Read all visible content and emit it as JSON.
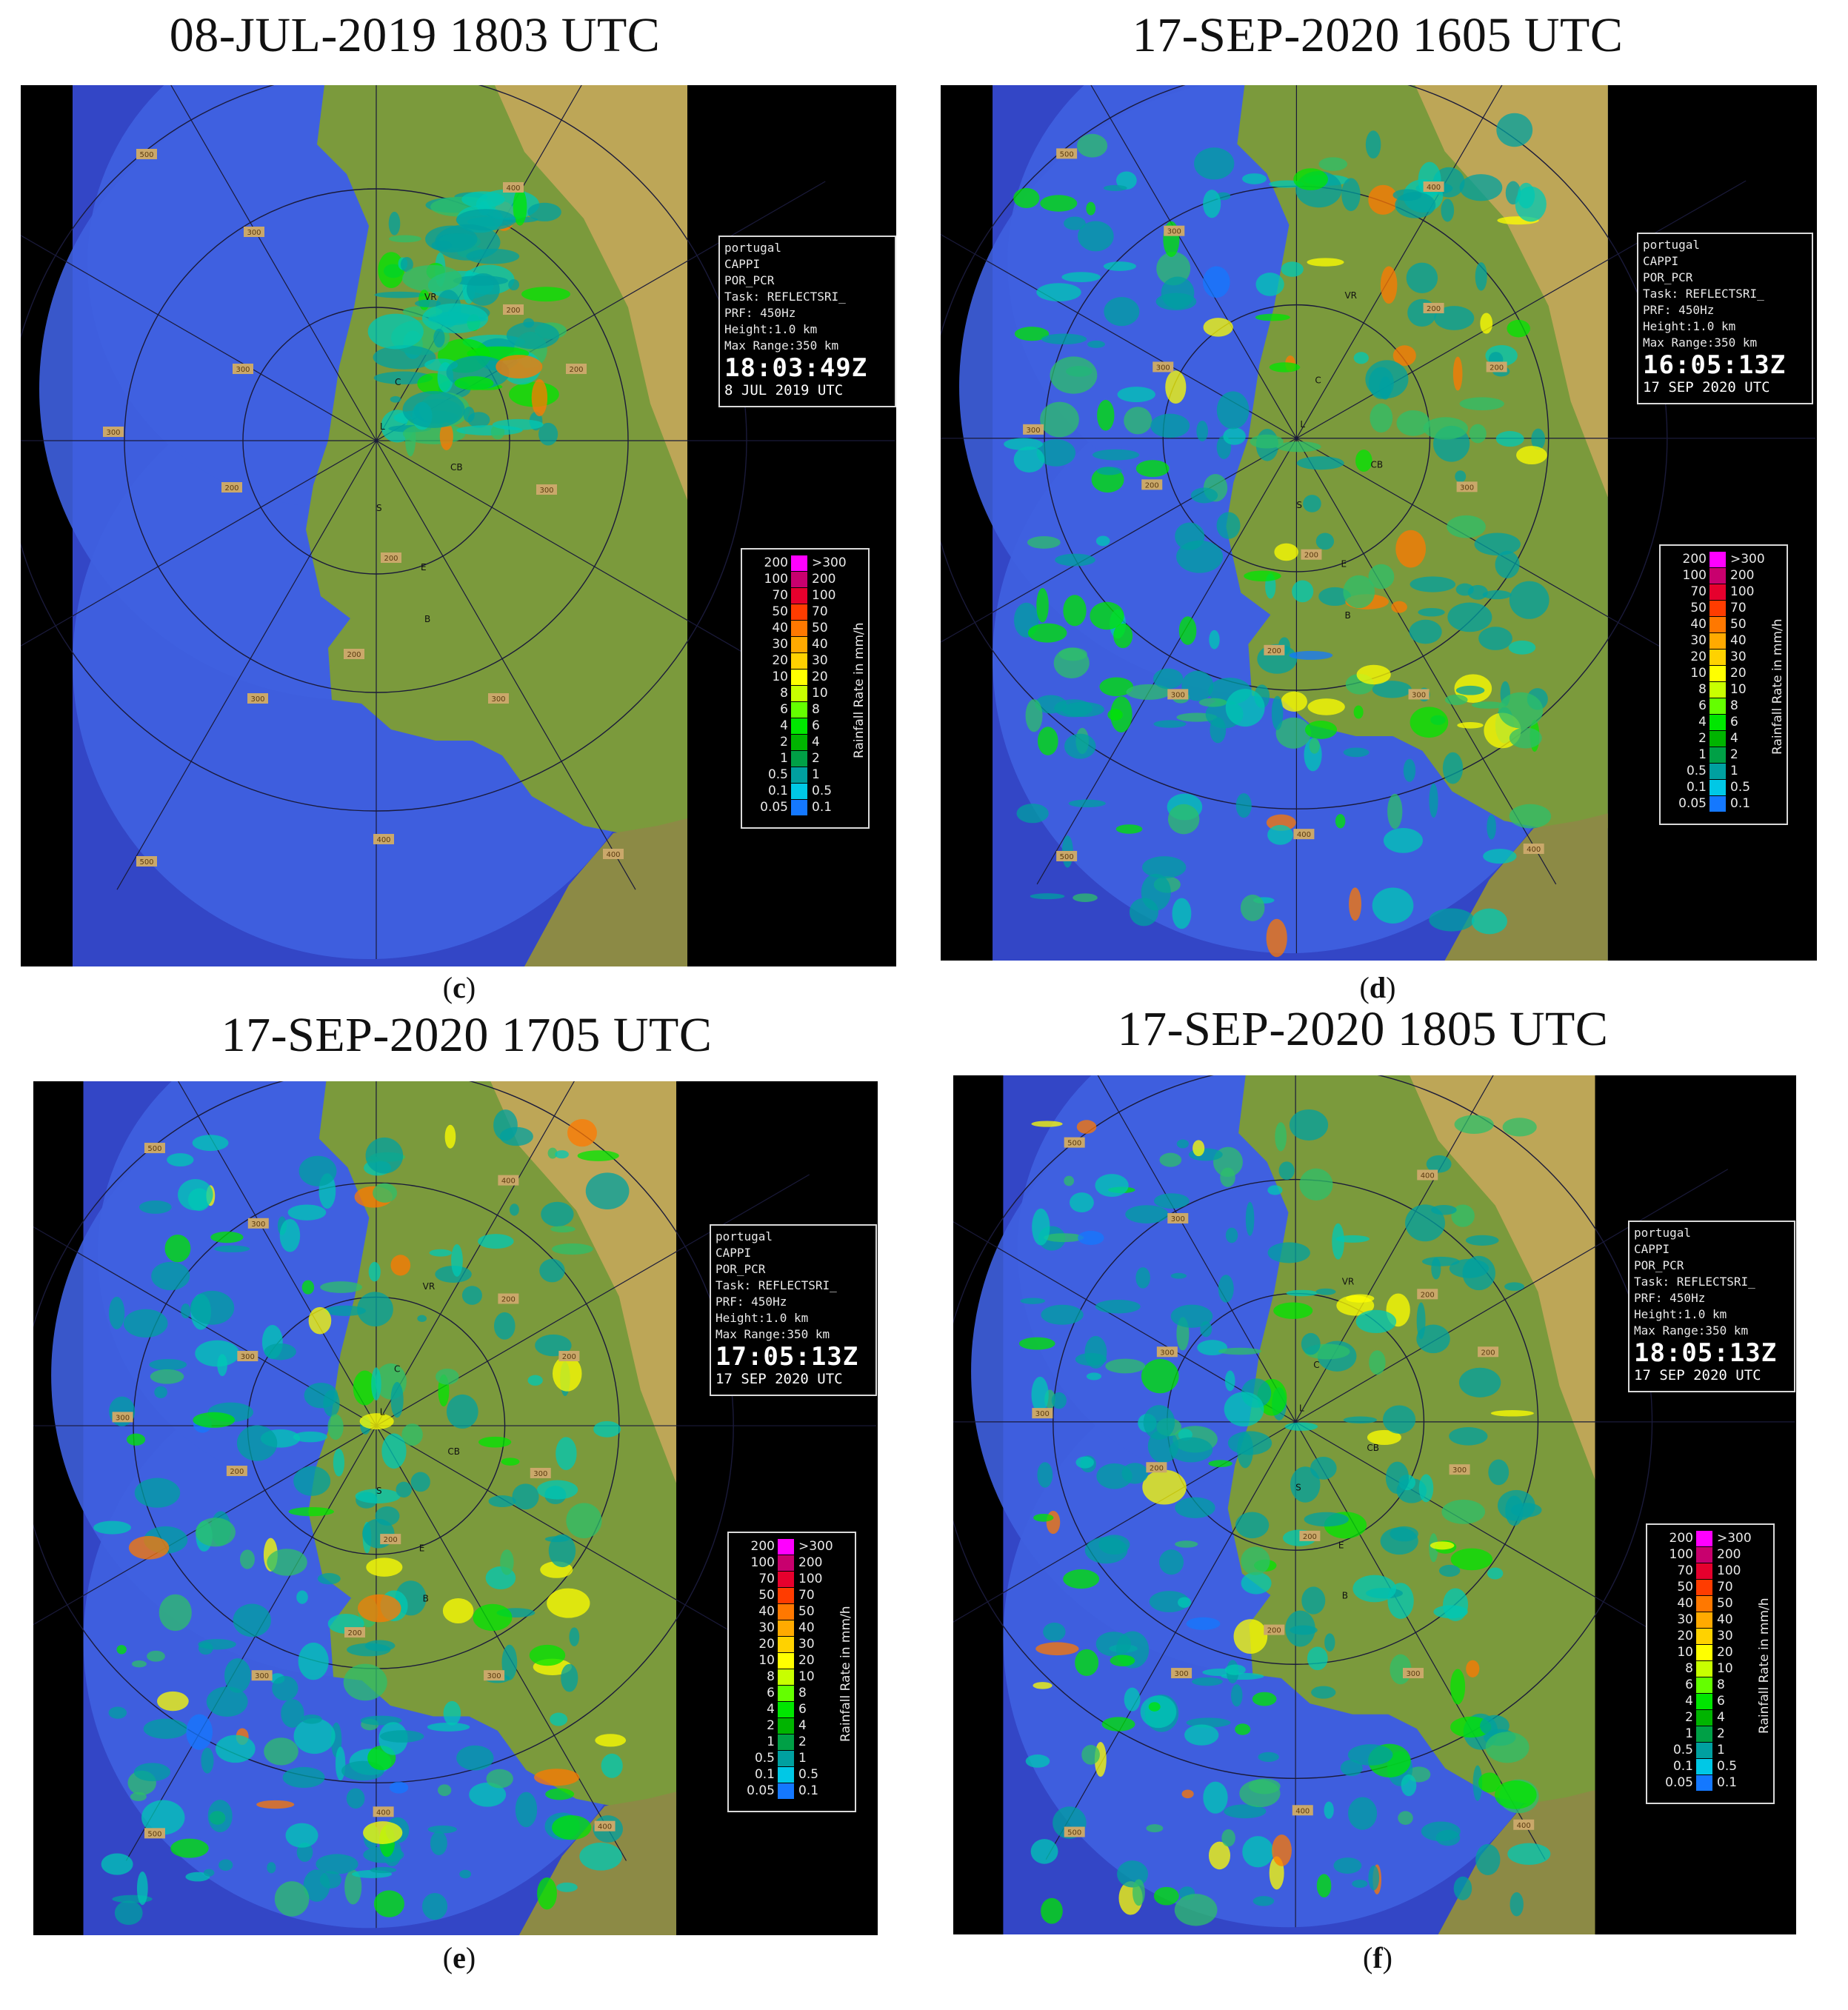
{
  "panels": [
    {
      "id": "c",
      "title": "08-JUL-2019 1803 UTC",
      "caption_letter": "c",
      "info": {
        "site": "portugal",
        "product": "CAPPI",
        "radar": "POR_PCR",
        "task": "Task: REFLECTSRI_",
        "prf": "PRF: 450Hz",
        "height": "Height:1.0 km",
        "max_range": "Max Range:350 km",
        "time": "18:03:49Z",
        "date": "8 JUL 2019 UTC"
      }
    },
    {
      "id": "d",
      "title": "17-SEP-2020 1605 UTC",
      "caption_letter": "d",
      "info": {
        "site": "portugal",
        "product": "CAPPI",
        "radar": "POR_PCR",
        "task": "Task: REFLECTSRI_",
        "prf": "PRF: 450Hz",
        "height": "Height:1.0 km",
        "max_range": "Max Range:350 km",
        "time": "16:05:13Z",
        "date": "17 SEP 2020 UTC"
      }
    },
    {
      "id": "e",
      "title": "17-SEP-2020 1705 UTC",
      "caption_letter": "e",
      "info": {
        "site": "portugal",
        "product": "CAPPI",
        "radar": "POR_PCR",
        "task": "Task: REFLECTSRI_",
        "prf": "PRF: 450Hz",
        "height": "Height:1.0 km",
        "max_range": "Max Range:350 km",
        "time": "17:05:13Z",
        "date": "17 SEP 2020 UTC"
      }
    },
    {
      "id": "f",
      "title": "17-SEP-2020 1805 UTC",
      "caption_letter": "f",
      "info": {
        "site": "portugal",
        "product": "CAPPI",
        "radar": "POR_PCR",
        "task": "Task: REFLECTSRI_",
        "prf": "PRF: 450Hz",
        "height": "Height:1.0 km",
        "max_range": "Max Range:350 km",
        "time": "18:05:13Z",
        "date": "17 SEP 2020 UTC"
      }
    }
  ],
  "legend": {
    "unit": "Rainfall Rate in mm/h",
    "rows": [
      {
        "left": "200",
        "right": ">300",
        "color": "#ff00ff"
      },
      {
        "left": "100",
        "right": "200",
        "color": "#c8006e"
      },
      {
        "left": "70",
        "right": "100",
        "color": "#e6002d"
      },
      {
        "left": "50",
        "right": "70",
        "color": "#ff3c00"
      },
      {
        "left": "40",
        "right": "50",
        "color": "#ff7800"
      },
      {
        "left": "30",
        "right": "40",
        "color": "#ffaa00"
      },
      {
        "left": "20",
        "right": "30",
        "color": "#ffd200"
      },
      {
        "left": "10",
        "right": "20",
        "color": "#ffff00"
      },
      {
        "left": "8",
        "right": "10",
        "color": "#c8ff00"
      },
      {
        "left": "6",
        "right": "8",
        "color": "#64ff00"
      },
      {
        "left": "4",
        "right": "6",
        "color": "#00e600"
      },
      {
        "left": "2",
        "right": "4",
        "color": "#00b400"
      },
      {
        "left": "1",
        "right": "2",
        "color": "#00a046"
      },
      {
        "left": "0.5",
        "right": "1",
        "color": "#00a0a0"
      },
      {
        "left": "0.1",
        "right": "0.5",
        "color": "#00c8e6"
      },
      {
        "left": "0.05",
        "right": "0.1",
        "color": "#1478ff"
      }
    ]
  },
  "range_labels": [
    "500",
    "400",
    "300",
    "200",
    "300",
    "200",
    "300",
    "200",
    "300",
    "400",
    "500",
    "200",
    "300",
    "400",
    "300",
    "200"
  ],
  "place_labels": [
    "VR",
    "C",
    "L",
    "CB",
    "S",
    "E",
    "B"
  ],
  "colors": {
    "sea": "#3346c6",
    "radar_coverage": "#3f61e0",
    "land_green": "#7b9a3c",
    "land_tan": "#c9a85c",
    "outside": "#000000"
  }
}
